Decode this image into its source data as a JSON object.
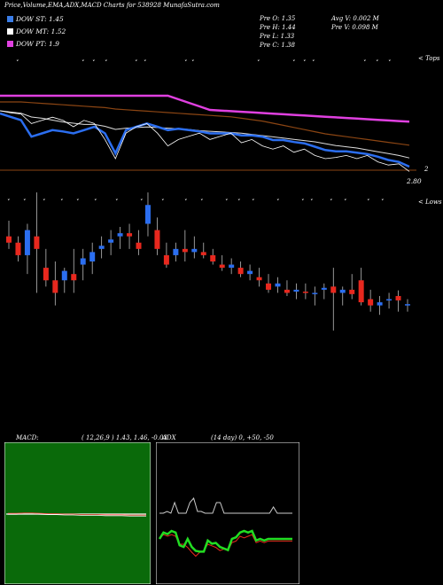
{
  "header": {
    "title": "Price,Volume,EMA,ADX,MACD Charts for 538928 MunafaSutra.com"
  },
  "legend": [
    {
      "label": "DOW ST: 1.45",
      "color": "#3a7de8"
    },
    {
      "label": "DOW MT: 1.52",
      "color": "#ffffff"
    },
    {
      "label": "DOW PT: 1.9",
      "color": "#e040e0"
    }
  ],
  "stats": {
    "prev_open": "Pre   O: 1.35",
    "prev_high": "Pre   H: 1.44",
    "prev_low": "Pre   L: 1.33",
    "prev_close": "Pre   C: 1.38",
    "avg_volume": "Avg V: 0.002  M",
    "prev_volume": "Pre   V: 0.098  M"
  },
  "top_panel": {
    "right_label": "< Tops",
    "price_marker": "2.80",
    "small_marker": "2"
  },
  "candle_panel": {
    "right_label": "< Lows"
  },
  "colors": {
    "up": "#2b6ef0",
    "down": "#e8281e",
    "magenta": "#e040e0",
    "ema_white": "#ffffff",
    "ema_brown": "#8b4513",
    "macd_bg": "#0a6a0a",
    "adx_green": "#22dd22"
  },
  "macd": {
    "label": "MACD:",
    "params": "( 12,26,9 ) 1.43,  1.46,  -0.03"
  },
  "adx": {
    "label": "ADX",
    "params": "(14  day) 0,  +50,  -50"
  },
  "chart_data": {
    "type": "candlestick",
    "candles": [
      [
        2.3,
        2.55,
        2.1,
        2.2
      ],
      [
        2.2,
        2.3,
        1.9,
        2.0
      ],
      [
        2.0,
        2.5,
        1.7,
        2.4
      ],
      [
        2.3,
        3.0,
        1.4,
        2.1
      ],
      [
        1.8,
        2.1,
        1.5,
        1.6
      ],
      [
        1.6,
        1.9,
        1.2,
        1.4
      ],
      [
        1.6,
        1.8,
        1.4,
        1.75
      ],
      [
        1.7,
        2.1,
        1.4,
        1.6
      ],
      [
        1.85,
        2.1,
        1.6,
        1.95
      ],
      [
        1.9,
        2.2,
        1.7,
        2.05
      ],
      [
        2.1,
        2.3,
        1.95,
        2.15
      ],
      [
        2.2,
        2.4,
        2.0,
        2.25
      ],
      [
        2.3,
        2.45,
        2.1,
        2.35
      ],
      [
        2.35,
        2.5,
        2.1,
        2.3
      ],
      [
        2.2,
        2.4,
        2.0,
        2.1
      ],
      [
        2.5,
        3.0,
        2.3,
        2.8
      ],
      [
        2.4,
        2.6,
        2.0,
        2.1
      ],
      [
        2.0,
        2.2,
        1.8,
        1.85
      ],
      [
        2.0,
        2.2,
        1.9,
        2.1
      ],
      [
        2.1,
        2.4,
        1.9,
        2.05
      ],
      [
        2.05,
        2.3,
        1.95,
        2.1
      ],
      [
        2.05,
        2.2,
        1.95,
        2.0
      ],
      [
        2.0,
        2.1,
        1.85,
        1.9
      ],
      [
        1.85,
        2.0,
        1.75,
        1.8
      ],
      [
        1.8,
        1.95,
        1.7,
        1.85
      ],
      [
        1.8,
        1.9,
        1.65,
        1.7
      ],
      [
        1.7,
        1.85,
        1.6,
        1.75
      ],
      [
        1.65,
        1.8,
        1.5,
        1.6
      ],
      [
        1.55,
        1.7,
        1.4,
        1.45
      ],
      [
        1.5,
        1.65,
        1.4,
        1.55
      ],
      [
        1.45,
        1.6,
        1.35,
        1.4
      ],
      [
        1.42,
        1.55,
        1.3,
        1.45
      ],
      [
        1.42,
        1.55,
        1.3,
        1.4
      ],
      [
        1.38,
        1.5,
        1.2,
        1.4
      ],
      [
        1.45,
        1.55,
        1.3,
        1.48
      ],
      [
        1.5,
        1.8,
        0.8,
        1.4
      ],
      [
        1.4,
        1.5,
        1.2,
        1.45
      ],
      [
        1.45,
        1.7,
        1.3,
        1.38
      ],
      [
        1.6,
        1.8,
        1.2,
        1.25
      ],
      [
        1.3,
        1.45,
        1.1,
        1.2
      ],
      [
        1.2,
        1.35,
        1.05,
        1.25
      ],
      [
        1.3,
        1.4,
        1.15,
        1.3
      ],
      [
        1.35,
        1.44,
        1.1,
        1.28
      ],
      [
        1.2,
        1.3,
        1.1,
        1.22
      ]
    ],
    "ema_short": [
      2.55,
      2.5,
      2.45,
      2.2,
      2.25,
      2.3,
      2.28,
      2.25,
      2.3,
      2.35,
      2.25,
      1.95,
      2.3,
      2.35,
      2.4,
      2.35,
      2.3,
      2.32,
      2.3,
      2.28,
      2.25,
      2.25,
      2.25,
      2.22,
      2.22,
      2.2,
      2.15,
      2.15,
      2.12,
      2.1,
      2.05,
      2.0,
      1.98,
      1.98,
      1.96,
      1.94,
      1.9,
      1.85,
      1.82,
      1.75
    ],
    "ema_mid": [
      2.6,
      2.58,
      2.56,
      2.5,
      2.48,
      2.45,
      2.42,
      2.4,
      2.38,
      2.38,
      2.35,
      2.3,
      2.32,
      2.33,
      2.34,
      2.33,
      2.32,
      2.31,
      2.3,
      2.28,
      2.27,
      2.26,
      2.25,
      2.24,
      2.22,
      2.2,
      2.18,
      2.16,
      2.14,
      2.12,
      2.1,
      2.07,
      2.04,
      2.02,
      2.0,
      1.97,
      1.94,
      1.91,
      1.88,
      1.84
    ],
    "ema_long": [
      2.9,
      2.9,
      2.9,
      2.89,
      2.88,
      2.87,
      2.86,
      2.85,
      2.84,
      2.83,
      2.82,
      2.8,
      2.79,
      2.78,
      2.77,
      2.76,
      2.75,
      2.74,
      2.73,
      2.72,
      2.71,
      2.7,
      2.69,
      2.67,
      2.65,
      2.63,
      2.6,
      2.57,
      2.54,
      2.51,
      2.48,
      2.45,
      2.43,
      2.41,
      2.39,
      2.37,
      2.35,
      2.33,
      2.31,
      2.29
    ],
    "price_line": [
      2.65,
      2.62,
      2.6,
      2.45,
      2.5,
      2.55,
      2.5,
      2.4,
      2.5,
      2.45,
      2.2,
      1.9,
      2.3,
      2.4,
      2.45,
      2.3,
      2.1,
      2.2,
      2.25,
      2.3,
      2.2,
      2.25,
      2.3,
      2.15,
      2.2,
      2.1,
      2.05,
      2.1,
      2.0,
      2.05,
      1.95,
      1.9,
      1.92,
      1.95,
      1.9,
      1.95,
      1.85,
      1.8,
      1.82,
      1.7
    ],
    "macd_values": [
      0.02,
      0.02,
      0.03,
      0.03,
      0.02,
      0.01,
      0.01,
      0.0,
      0.0,
      -0.01,
      -0.01,
      -0.01,
      -0.02,
      -0.02,
      -0.02,
      -0.03,
      -0.03,
      -0.03
    ],
    "adx_values": [
      18,
      18,
      20,
      18,
      30,
      18,
      18,
      18,
      30,
      35,
      20,
      20,
      18,
      18,
      18,
      30,
      30,
      18,
      18,
      18,
      18,
      18,
      18,
      18,
      18,
      18,
      18,
      18,
      18,
      18,
      25,
      18,
      18,
      18,
      18,
      18
    ],
    "plus_di": [
      -20,
      -12,
      -14,
      -10,
      -12,
      -28,
      -30,
      -20,
      -30,
      -35,
      -36,
      -36,
      -22,
      -26,
      -25,
      -30,
      -32,
      -34,
      -20,
      -18,
      -12,
      -10,
      -12,
      -10,
      -22,
      -20,
      -22,
      -20,
      -20,
      -20,
      -20,
      -20,
      -20,
      -20
    ],
    "minus_di": [
      -22,
      -18,
      -20,
      -18,
      -20,
      -30,
      -30,
      -34,
      -40,
      -45,
      -40,
      -38,
      -30,
      -32,
      -34,
      -38,
      -36,
      -38,
      -28,
      -26,
      -20,
      -22,
      -20,
      -18,
      -28,
      -26,
      -28,
      -26,
      -26,
      -26,
      -26,
      -26,
      -26,
      -26
    ]
  }
}
